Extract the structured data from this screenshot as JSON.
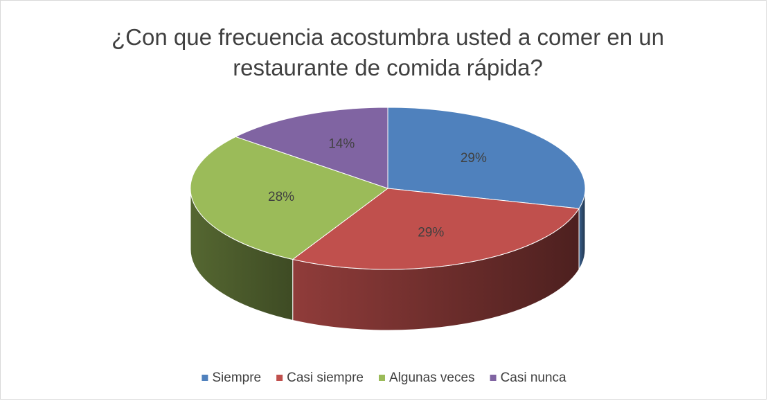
{
  "chart_data": {
    "type": "pie",
    "title": "¿Con que frecuencia acostumbra usted a comer en un restaurante de comida rápida?",
    "categories": [
      "Siempre",
      "Casi siempre",
      "Algunas veces",
      "Casi nunca"
    ],
    "values": [
      29,
      29,
      28,
      14
    ],
    "value_labels": [
      "29%",
      "29%",
      "28%",
      "14%"
    ],
    "colors": [
      "#4f81bd",
      "#c0504d",
      "#9bbb59",
      "#8064a2"
    ],
    "legend": "bottom"
  }
}
